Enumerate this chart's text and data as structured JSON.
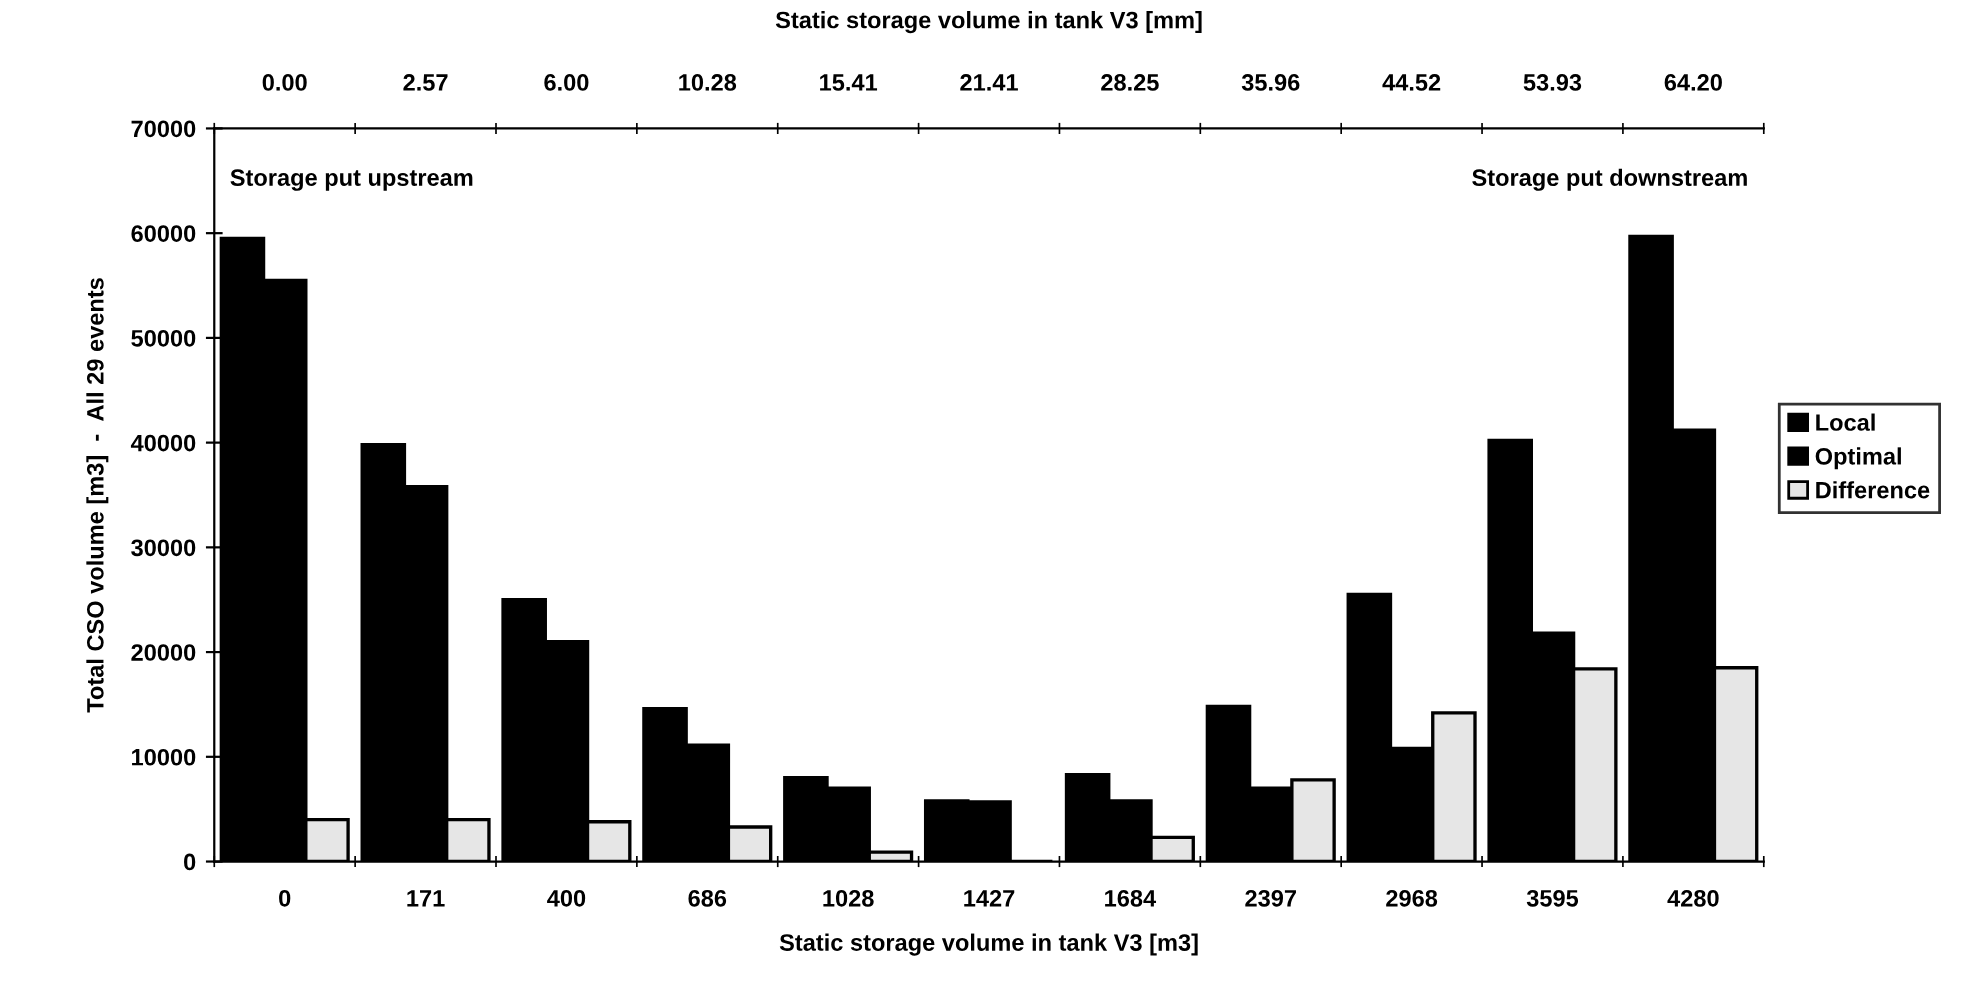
{
  "chart_data": {
    "type": "bar",
    "xlabel": "Static storage volume in tank V3 [m3]",
    "x2label": "Static storage volume in tank V3 [mm]",
    "ylabel": "Total CSO volume [m3]  -  All 29 events",
    "categories": [
      "0",
      "171",
      "400",
      "686",
      "1028",
      "1427",
      "1684",
      "2397",
      "2968",
      "3595",
      "4280"
    ],
    "series": [
      {
        "name": "Local",
        "color": "#000000",
        "values": [
          59500,
          39800,
          25000,
          14600,
          8000,
          5800,
          8300,
          14800,
          25500,
          40200,
          59700
        ]
      },
      {
        "name": "Optimal",
        "color": "#000000",
        "values": [
          55500,
          35800,
          21000,
          11100,
          7000,
          5700,
          5800,
          7000,
          10800,
          21800,
          41200
        ]
      },
      {
        "name": "Difference",
        "color": "#e6e6e6",
        "values": [
          4000,
          4000,
          3800,
          3300,
          900,
          null,
          2300,
          7800,
          14200,
          18400,
          18500
        ]
      }
    ],
    "ylim": [
      0,
      70000
    ],
    "yticks": [
      0,
      10000,
      20000,
      30000,
      40000,
      50000,
      60000,
      70000
    ],
    "annotations": [
      "Storage put upstream",
      "Storage put downstream",
      "0.00",
      "2.57",
      "6.00",
      "10.28",
      "15.41",
      "21.41",
      "28.25",
      "35.96",
      "44.52",
      "53.93",
      "64.20"
    ],
    "legend": "right",
    "grid": false
  }
}
